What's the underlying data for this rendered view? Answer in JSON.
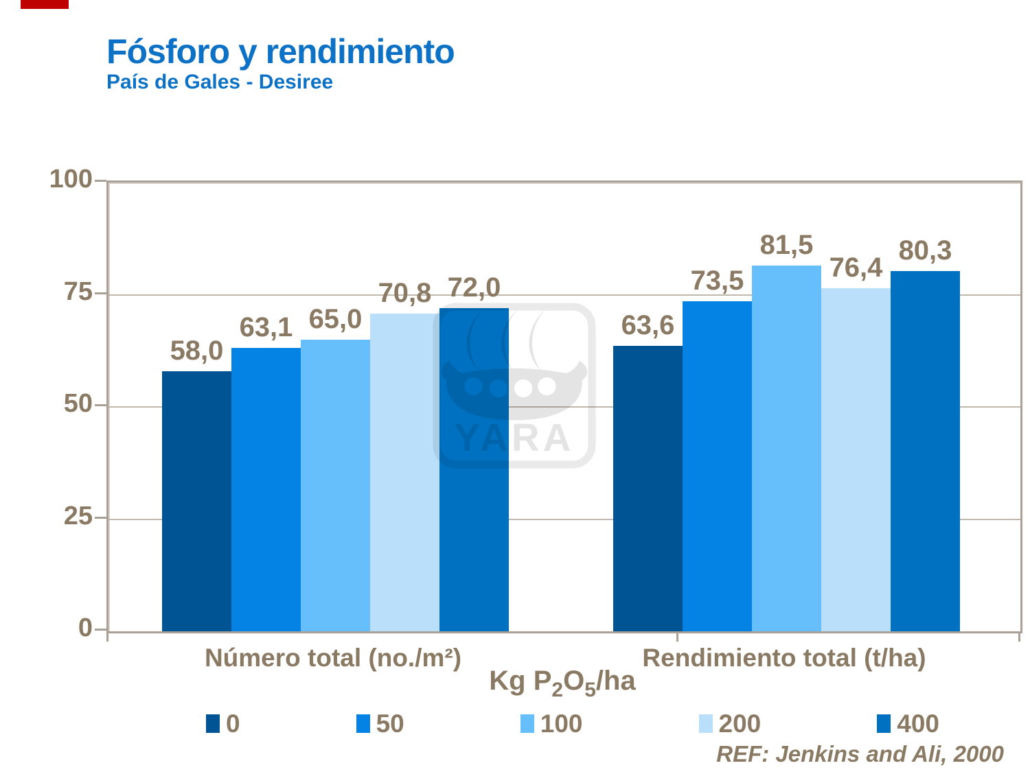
{
  "slide": {
    "accent_color": "#C00000",
    "background": "#FFFFFF"
  },
  "header": {
    "title": "Fósforo y rendimiento",
    "subtitle": "País de Gales - Desiree",
    "title_color": "#0D72C6"
  },
  "chart_data": {
    "type": "bar",
    "title": "Fósforo y rendimiento",
    "subtitle": "País de Gales - Desiree",
    "categories": [
      "Número total (no./m²)",
      "Rendimiento total (t/ha)"
    ],
    "series": [
      {
        "name": "0",
        "color": "#005493",
        "values": [
          58.0,
          63.6
        ],
        "labels": [
          "58,0",
          "63,6"
        ]
      },
      {
        "name": "50",
        "color": "#0583E5",
        "values": [
          63.1,
          73.5
        ],
        "labels": [
          "63,1",
          "73,5"
        ]
      },
      {
        "name": "100",
        "color": "#66BFFB",
        "values": [
          65.0,
          81.5
        ],
        "labels": [
          "65,0",
          "81,5"
        ]
      },
      {
        "name": "200",
        "color": "#B9DFFA",
        "values": [
          70.8,
          76.4
        ],
        "labels": [
          "70,8",
          "76,4"
        ]
      },
      {
        "name": "400",
        "color": "#0070C0",
        "values": [
          72.0,
          80.3
        ],
        "labels": [
          "72,0",
          "80,3"
        ]
      }
    ],
    "xlabel_parts": [
      {
        "text": "Kg P",
        "sub": false
      },
      {
        "text": "2",
        "sub": true
      },
      {
        "text": "O",
        "sub": false
      },
      {
        "text": "5",
        "sub": true
      },
      {
        "text": "/ha",
        "sub": false
      }
    ],
    "ylabel": "",
    "ylim": [
      0,
      100
    ],
    "yticks": [
      0,
      25,
      50,
      75,
      100
    ],
    "grid": true,
    "legend_position": "bottom",
    "legend_labels": [
      "0",
      "50",
      "100",
      "200",
      "400"
    ],
    "text_color": "#8A7A63",
    "axis_color": "#ABA095",
    "grid_color": "#C2B9AE"
  },
  "watermark": {
    "label": "YARA"
  },
  "footer": {
    "ref": "REF: Jenkins and Ali, 2000"
  }
}
